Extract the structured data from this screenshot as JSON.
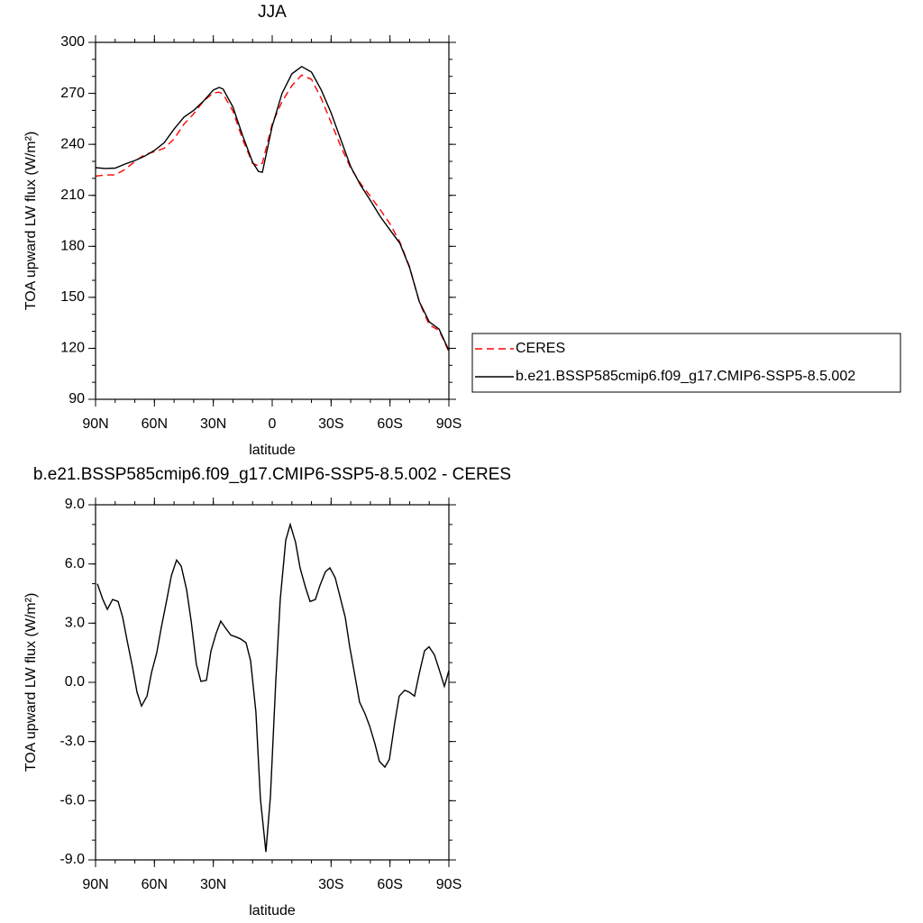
{
  "chart_data": [
    {
      "type": "line",
      "title": "JJA",
      "x_label": "latitude",
      "y_label": "TOA upward LW flux (W/m²)",
      "x": [
        90,
        85,
        80,
        75,
        70,
        65,
        60,
        55,
        50,
        45,
        40,
        35,
        30,
        27,
        25,
        20,
        15,
        10,
        7,
        5,
        0,
        -5,
        -10,
        -15,
        -20,
        -25,
        -30,
        -35,
        -40,
        -45,
        -50,
        -55,
        -60,
        -65,
        -70,
        -75,
        -80,
        -85,
        -90
      ],
      "xlim": [
        90,
        -90
      ],
      "xticks": [
        {
          "value": 90,
          "label": "90N"
        },
        {
          "value": 60,
          "label": "60N"
        },
        {
          "value": 30,
          "label": "30N"
        },
        0,
        {
          "value": -30,
          "label": "30S"
        },
        {
          "value": -60,
          "label": "60S"
        },
        {
          "value": -90,
          "label": "90S"
        }
      ],
      "ylim": [
        90,
        300
      ],
      "yticks": [
        90,
        120,
        150,
        180,
        210,
        240,
        270,
        300
      ],
      "legend": "right",
      "series": [
        {
          "name": "CERES",
          "color": "#ff0000",
          "dash": "dashed",
          "values": [
            221.3,
            222,
            222,
            225.3,
            229.9,
            233.9,
            235.7,
            237.7,
            243.2,
            251.8,
            258,
            265.4,
            270.3,
            270.7,
            269.5,
            259.6,
            242.8,
            228.9,
            227.3,
            229,
            252,
            265.2,
            274.5,
            280.8,
            278.2,
            267,
            252.9,
            238.7,
            226,
            217,
            209.4,
            201.6,
            193.2,
            182.5,
            168,
            147,
            133.8,
            130.5,
            118.1
          ]
        },
        {
          "name": "b.e21.BSSP585cmip6.f09_g17.CMIP6-SSP5-8.5.002",
          "color": "#000000",
          "values": [
            226.3,
            225.8,
            226,
            228.4,
            230.5,
            233,
            236.4,
            241,
            249,
            256,
            260,
            265.5,
            272,
            273.5,
            272.5,
            262,
            245,
            229.5,
            224,
            223.6,
            250.7,
            270,
            281.5,
            285.8,
            282.5,
            272,
            258.6,
            242.7,
            226.8,
            216,
            207,
            197.6,
            189.6,
            181.8,
            167.5,
            147.3,
            135.6,
            131.3,
            118.7
          ]
        }
      ]
    },
    {
      "type": "line",
      "title": "b.e21.BSSP585cmip6.f09_g17.CMIP6-SSP5-8.5.002 - CERES",
      "x_label": "latitude",
      "y_label": "TOA upward LW flux (W/m²)",
      "x": [
        89.1,
        86.3,
        84.0,
        81.3,
        78.5,
        76.2,
        73.9,
        71.2,
        68.9,
        66.6,
        63.8,
        61.5,
        58.8,
        56.5,
        53.7,
        51.4,
        48.7,
        46.4,
        43.6,
        41.3,
        38.6,
        36.3,
        33.5,
        31.2,
        28.5,
        26.2,
        23.4,
        21.1,
        18.4,
        16.1,
        13.3,
        11.0,
        8.3,
        6.0,
        3.2,
        0.9,
        -1.8,
        -4.1,
        -6.9,
        -9.2,
        -11.9,
        -14.2,
        -17.0,
        -19.3,
        -22.0,
        -24.3,
        -27.1,
        -29.4,
        -32.1,
        -34.4,
        -37.2,
        -39.5,
        -42.2,
        -44.5,
        -47.3,
        -49.6,
        -52.3,
        -54.6,
        -57.4,
        -59.7,
        -62.5,
        -64.7,
        -67.5,
        -69.8,
        -72.5,
        -74.8,
        -77.6,
        -79.9,
        -82.6,
        -84.9,
        -87.7,
        -90
      ],
      "xlim": [
        90,
        -90
      ],
      "xticks": [
        {
          "value": 90,
          "label": "90N"
        },
        {
          "value": 60,
          "label": "60N"
        },
        {
          "value": 30,
          "label": "30N"
        },
        {
          "value": -30,
          "label": "30S"
        },
        {
          "value": -60,
          "label": "60S"
        },
        {
          "value": -90,
          "label": "90S"
        }
      ],
      "ylim": [
        -9,
        9
      ],
      "yticks": [
        {
          "value": -9,
          "label": "-9.0"
        },
        {
          "value": -6,
          "label": "-6.0"
        },
        {
          "value": -3,
          "label": "-3.0"
        },
        {
          "value": 0,
          "label": "0.0"
        },
        {
          "value": 3,
          "label": "3.0"
        },
        {
          "value": 6,
          "label": "6.0"
        },
        {
          "value": 9,
          "label": "9.0"
        }
      ],
      "series": [
        {
          "color": "#000000",
          "values": [
            5.0,
            4.2,
            3.7,
            4.2,
            4.1,
            3.3,
            2.1,
            0.8,
            -0.5,
            -1.2,
            -0.7,
            0.5,
            1.5,
            2.8,
            4.2,
            5.4,
            6.2,
            5.9,
            4.7,
            3.1,
            0.9,
            0.05,
            0.1,
            1.6,
            2.5,
            3.1,
            2.7,
            2.4,
            2.3,
            2.2,
            2.0,
            1.1,
            -1.5,
            -5.9,
            -8.6,
            -5.8,
            0.0,
            4.2,
            7.2,
            8.0,
            7.1,
            5.8,
            4.8,
            4.1,
            4.2,
            4.9,
            5.6,
            5.8,
            5.3,
            4.4,
            3.3,
            1.8,
            0.3,
            -1.0,
            -1.6,
            -2.2,
            -3.1,
            -4.0,
            -4.3,
            -3.9,
            -2.0,
            -0.7,
            -0.4,
            -0.5,
            -0.7,
            0.4,
            1.6,
            1.8,
            1.4,
            0.7,
            -0.2,
            0.6
          ]
        }
      ]
    }
  ]
}
